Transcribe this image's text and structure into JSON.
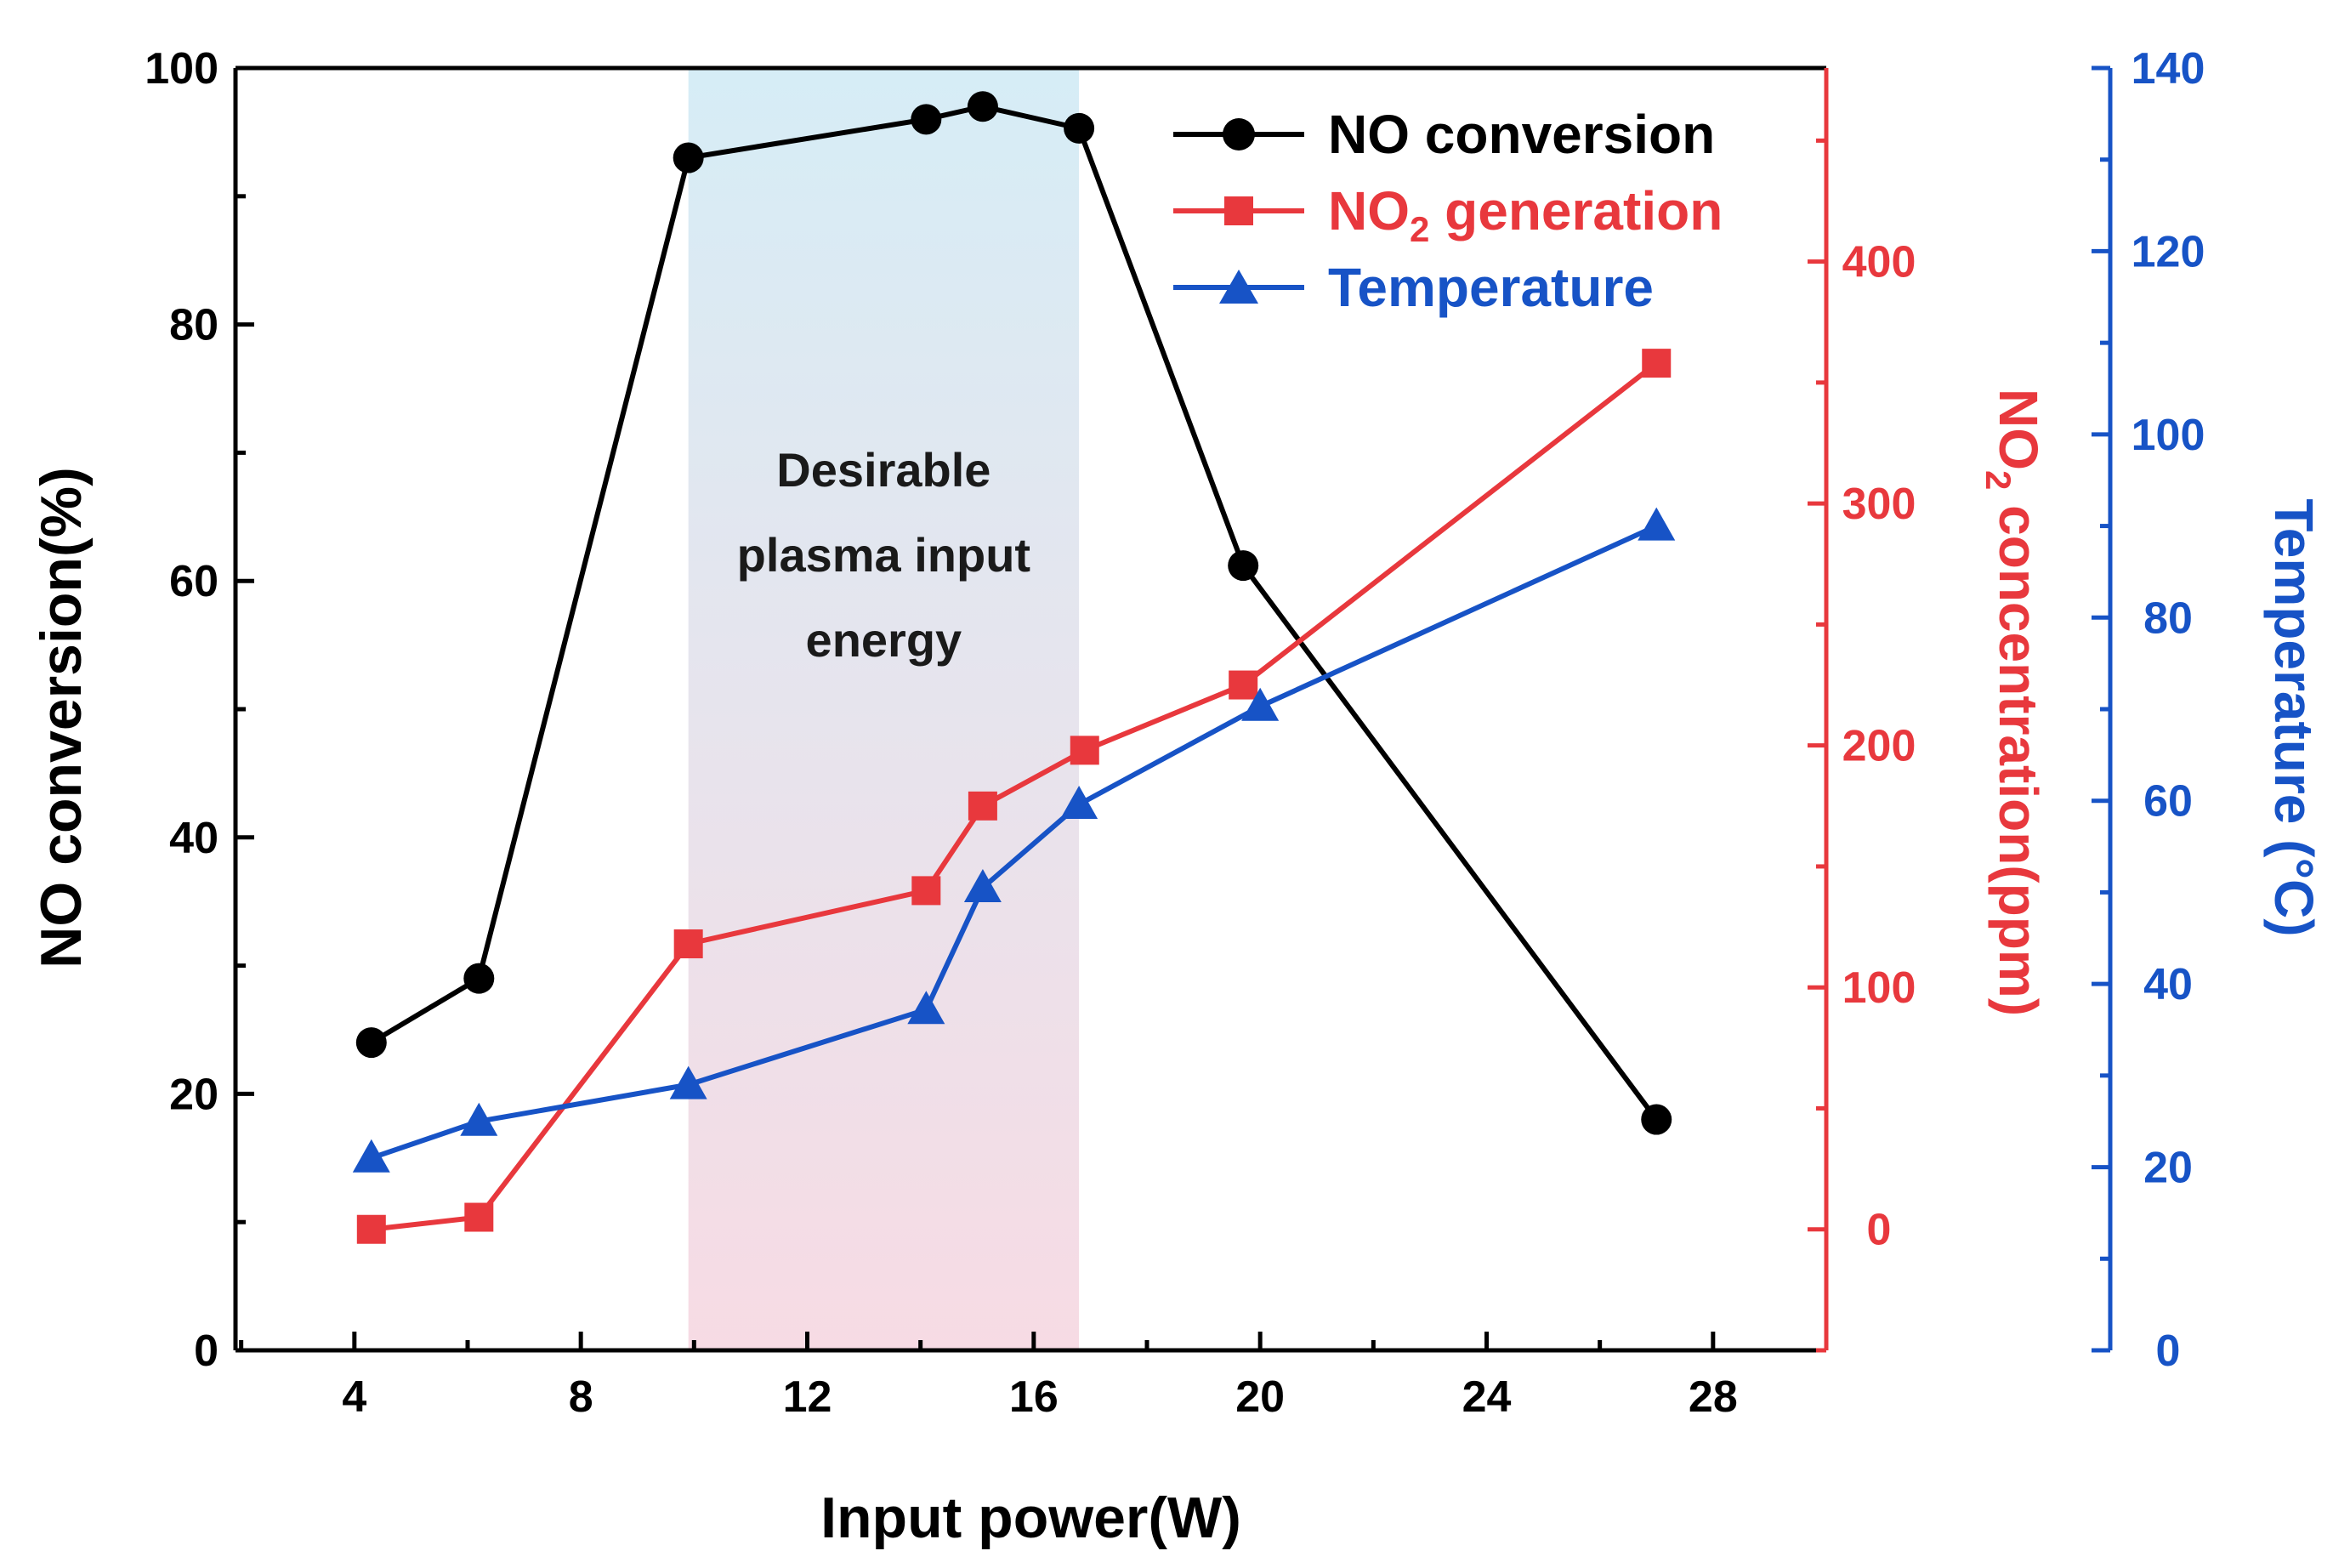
{
  "chart_data": {
    "type": "line",
    "title": "",
    "xlabel": "Input power(W)",
    "xlim": [
      1.9,
      30
    ],
    "x_ticks": [
      4,
      8,
      12,
      16,
      20,
      24,
      28
    ],
    "axes": {
      "left": {
        "label": "NO conversion(%)",
        "ylim": [
          0,
          100
        ],
        "ticks": [
          0,
          20,
          40,
          60,
          80,
          100
        ],
        "color": "#000000"
      },
      "right_red": {
        "label_main": "NO",
        "label_sub": "2",
        "label_rest": " concentration(ppm)",
        "ylim": [
          -50,
          480
        ],
        "ticks": [
          0,
          100,
          200,
          300,
          400
        ],
        "color": "#e8383d"
      },
      "right_blue": {
        "label": "Temperature (°C)",
        "ylim": [
          0,
          140
        ],
        "ticks": [
          0,
          20,
          40,
          60,
          80,
          100,
          120,
          140
        ],
        "color": "#1753c6"
      }
    },
    "series": [
      {
        "name": "NO conversion",
        "axis": "left",
        "color": "#000000",
        "marker": "circle",
        "x": [
          4.3,
          6.2,
          9.9,
          14.1,
          15.1,
          16.8,
          19.7,
          27.0
        ],
        "values": [
          24,
          29,
          93,
          96,
          97,
          95.3,
          61.2,
          18
        ]
      },
      {
        "name_main": "NO",
        "name_sub": "2",
        "name_rest": " generation",
        "axis": "right_red",
        "color": "#e8383d",
        "marker": "square",
        "x": [
          4.3,
          6.2,
          9.9,
          14.1,
          15.1,
          16.9,
          19.7,
          27.0
        ],
        "values": [
          0,
          5,
          118,
          140,
          175,
          198,
          225,
          358
        ]
      },
      {
        "name": "Temperature",
        "axis": "right_blue",
        "color": "#1753c6",
        "marker": "triangle",
        "x": [
          4.3,
          6.2,
          9.9,
          14.1,
          15.1,
          16.8,
          20.0,
          27.0
        ],
        "values": [
          21,
          25,
          29,
          37.2,
          50.5,
          59.6,
          70.3,
          90
        ]
      }
    ],
    "annotation": {
      "lines": [
        "Desirable",
        "plasma input",
        "energy"
      ],
      "x_range": [
        9.9,
        16.8
      ]
    },
    "legend_position": "top-right"
  }
}
